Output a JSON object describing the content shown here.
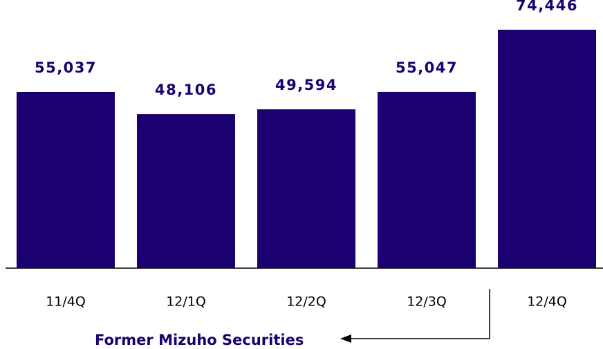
{
  "chart_data": {
    "type": "bar",
    "categories": [
      "11/4Q",
      "12/1Q",
      "12/2Q",
      "12/3Q",
      "12/4Q"
    ],
    "values": [
      55037,
      48106,
      49594,
      55047,
      74446
    ],
    "value_labels": [
      "55,037",
      "48,106",
      "49,594",
      "55,047",
      "74,446"
    ],
    "color": "#1a0070",
    "ylim": [
      0,
      80000
    ],
    "annotation": "Former Mizuho Securities"
  }
}
